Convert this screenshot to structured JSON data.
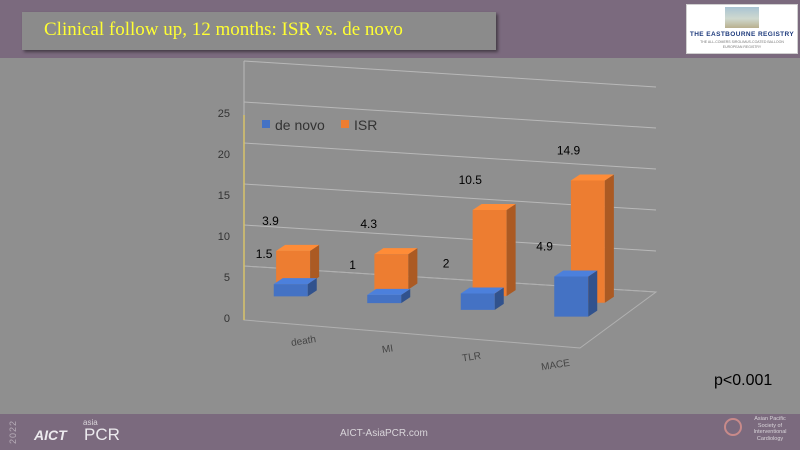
{
  "title": "Clinical follow up, 12 months: ISR vs. de novo",
  "logo": {
    "name": "THE EASTBOURNE REGISTRY",
    "sub1": "THE ALL-COMERS SIROLIMUS-COATED BALLOON",
    "sub2": "EUROPEAN REGISTRY"
  },
  "p_value": "p<0.001",
  "footer": {
    "year": "2022",
    "brand": "AICT",
    "asia": "asia",
    "pcr": "PCR",
    "url": "AICT-AsiaPCR.com",
    "society": "Asian Pacific Society of Interventional Cardiology"
  },
  "colors": {
    "de_novo": "#4472c4",
    "isr": "#ed7d31",
    "title_text": "#ffff33",
    "band": "#7b6a7e",
    "background": "#8f8f8f"
  },
  "chart_data": {
    "type": "bar",
    "subtype": "3d-grouped",
    "categories": [
      "death",
      "MI",
      "TLR",
      "MACE"
    ],
    "series": [
      {
        "name": "de novo",
        "values": [
          1.5,
          1,
          2,
          4.9
        ],
        "labels": [
          "1.5",
          "1",
          "2",
          "4.9"
        ]
      },
      {
        "name": "ISR",
        "values": [
          3.9,
          4.3,
          10.5,
          14.9
        ],
        "labels": [
          "3.9",
          "4.3",
          "10.5",
          "14.9"
        ]
      }
    ],
    "ylim": [
      0,
      25
    ],
    "yticks": [
      0,
      5,
      10,
      15,
      20,
      25
    ],
    "grid": true,
    "legend": "top-left"
  }
}
